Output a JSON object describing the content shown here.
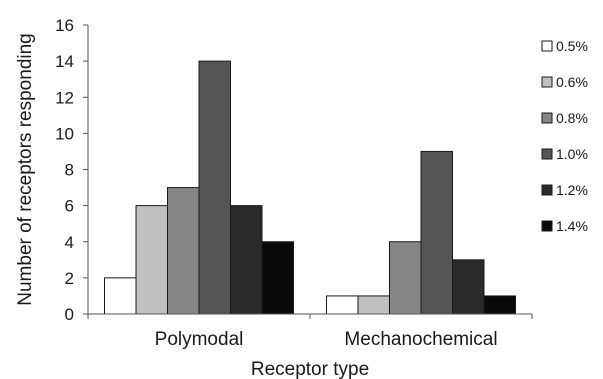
{
  "chart_data": {
    "type": "bar",
    "title": "",
    "xlabel": "Receptor type",
    "ylabel": "Number of receptors responding",
    "categories": [
      "Polymodal",
      "Mechanochemical"
    ],
    "ylim": [
      0,
      16
    ],
    "yticks": [
      "0",
      "2",
      "4",
      "6",
      "8",
      "10",
      "12",
      "14",
      "16"
    ],
    "grid": false,
    "legend_position": "right",
    "series": [
      {
        "name": "0.5%",
        "color": "#ffffff",
        "values": [
          2,
          1
        ]
      },
      {
        "name": "0.6%",
        "color": "#c0c0c0",
        "values": [
          6,
          1
        ]
      },
      {
        "name": "0.8%",
        "color": "#868686",
        "values": [
          7,
          4
        ]
      },
      {
        "name": "1.0%",
        "color": "#555555",
        "values": [
          14,
          9
        ]
      },
      {
        "name": "1.2%",
        "color": "#2a2a2a",
        "values": [
          6,
          3
        ]
      },
      {
        "name": "1.4%",
        "color": "#0a0a0a",
        "values": [
          4,
          1
        ]
      }
    ]
  }
}
